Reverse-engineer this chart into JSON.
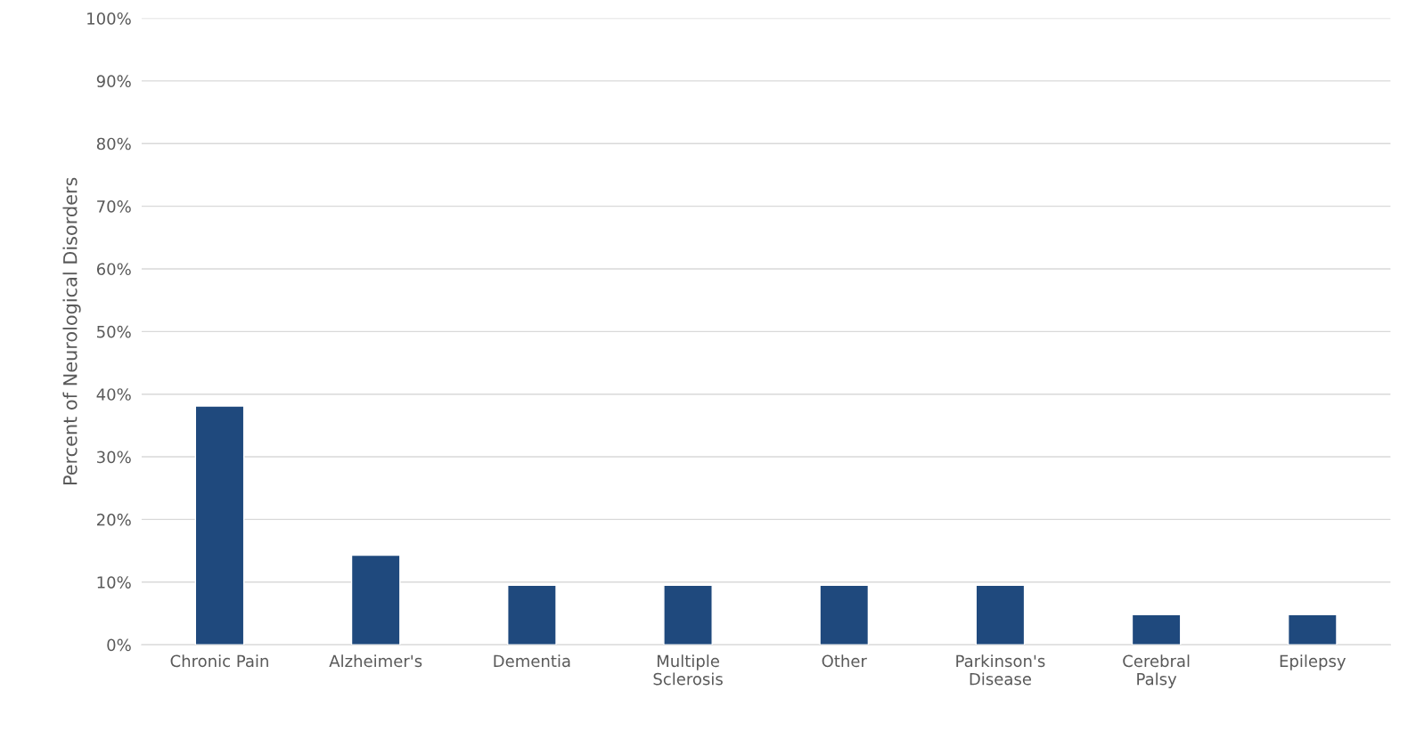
{
  "chart_data": {
    "type": "bar",
    "ylabel": "Percent of Neurological Disorders",
    "categories": [
      "Chronic Pain",
      "Alzheimer's",
      "Dementia",
      "Multiple Sclerosis",
      "Other",
      "Parkinson's Disease",
      "Cerebral Palsy",
      "Epilepsy"
    ],
    "values": [
      38.1,
      14.3,
      9.5,
      9.5,
      9.5,
      9.5,
      4.8,
      4.8
    ],
    "color": "#1f497d",
    "ylim": [
      0,
      100
    ],
    "yticks": [
      {
        "value": 0,
        "label": "0%"
      },
      {
        "value": 10,
        "label": "10%"
      },
      {
        "value": 20,
        "label": "20%"
      },
      {
        "value": 30,
        "label": "30%"
      },
      {
        "value": 40,
        "label": "40%"
      },
      {
        "value": 50,
        "label": "50%"
      },
      {
        "value": 60,
        "label": "60%"
      },
      {
        "value": 70,
        "label": "70%"
      },
      {
        "value": 80,
        "label": "80%"
      },
      {
        "value": 90,
        "label": "90%"
      },
      {
        "value": 100,
        "label": "100%"
      }
    ],
    "grid": "y",
    "legend": false
  }
}
